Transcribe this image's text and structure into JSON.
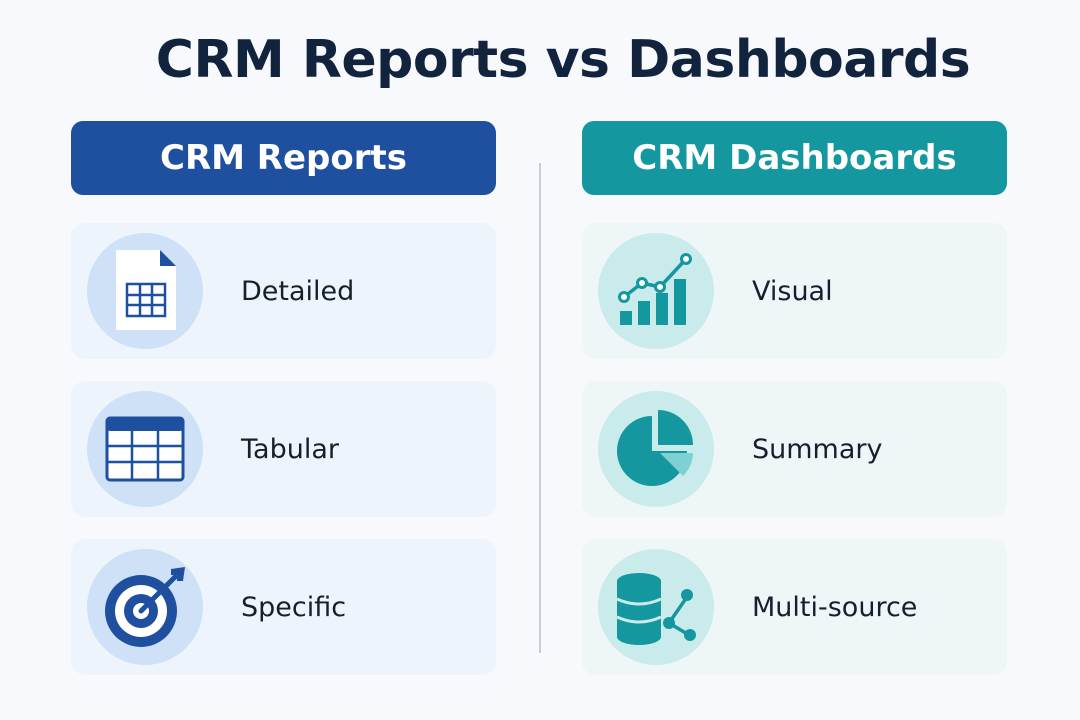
{
  "title": "CRM Reports vs Dashboards",
  "colors": {
    "reports_accent": "#1f4f9f",
    "dashboards_accent": "#14979f",
    "title_text": "#12233d"
  },
  "reports": {
    "header": "CRM Reports",
    "items": [
      {
        "label": "Detailed",
        "icon": "document-table-icon"
      },
      {
        "label": "Tabular",
        "icon": "table-grid-icon"
      },
      {
        "label": "Specific",
        "icon": "target-icon"
      }
    ]
  },
  "dashboards": {
    "header": "CRM Dashboards",
    "items": [
      {
        "label": "Visual",
        "icon": "bar-chart-trend-icon"
      },
      {
        "label": "Summary",
        "icon": "pie-chart-icon"
      },
      {
        "label": "Multi-source",
        "icon": "database-network-icon"
      }
    ]
  }
}
